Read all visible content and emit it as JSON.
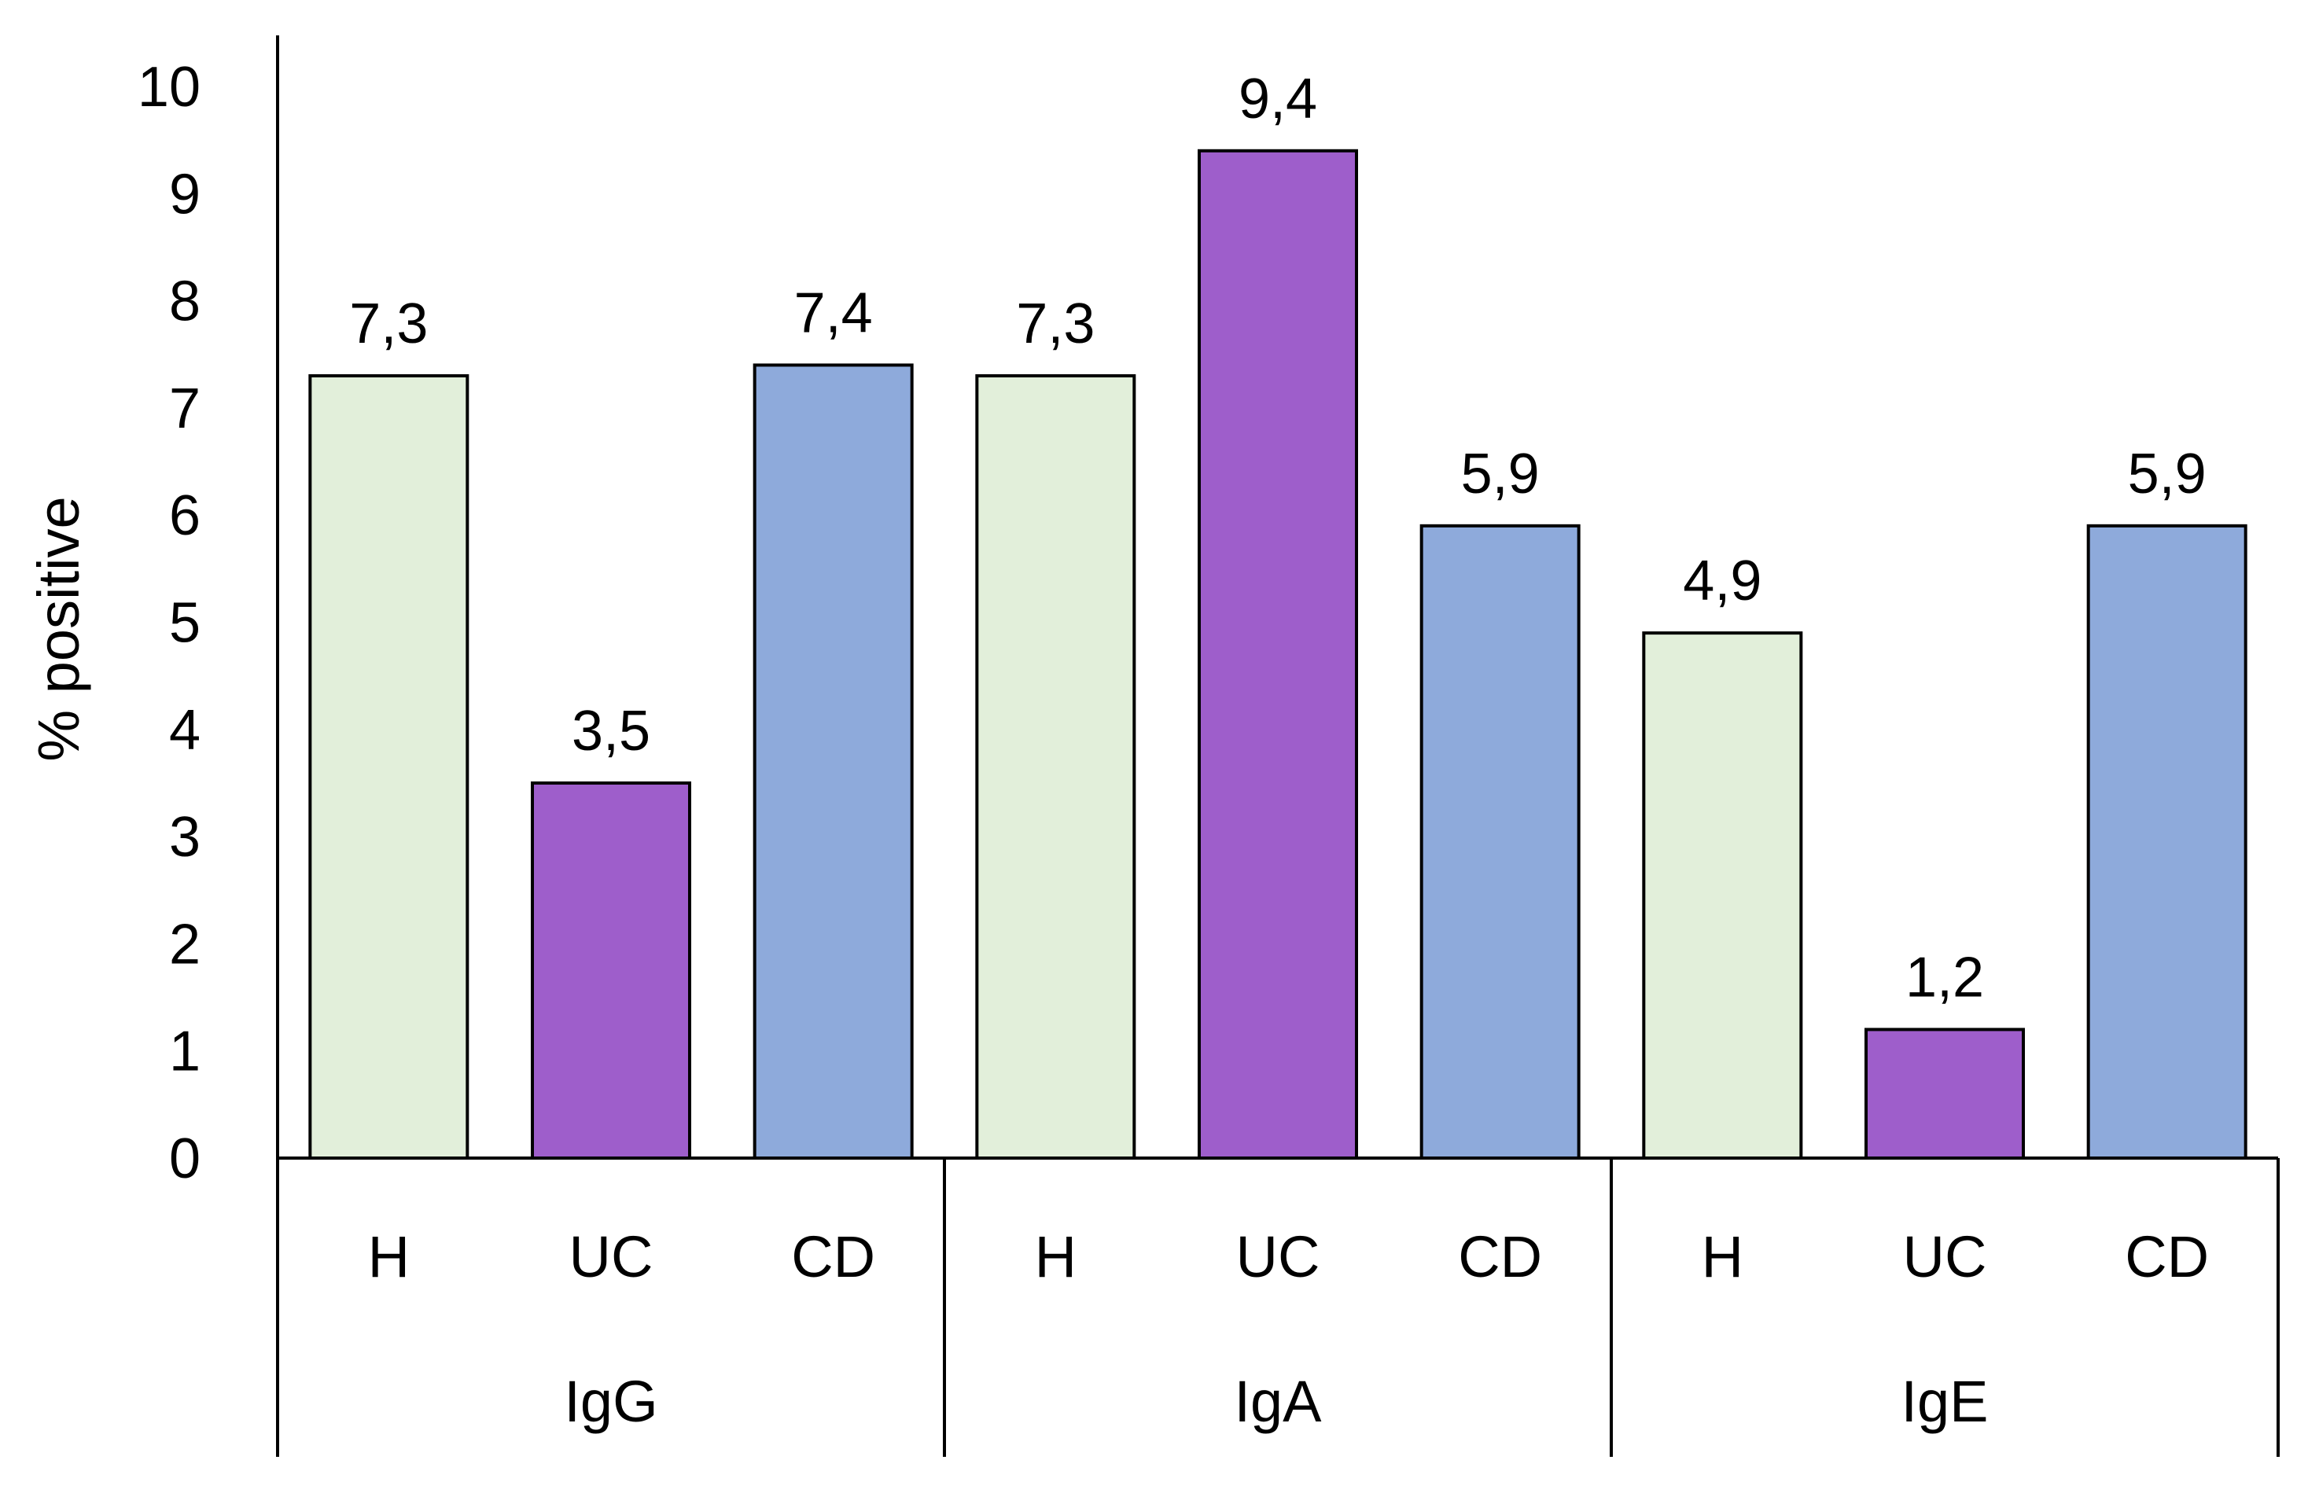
{
  "chart_data": {
    "type": "bar",
    "title": "",
    "xlabel": "",
    "ylabel": "% positive",
    "ylim": [
      0,
      10
    ],
    "yticks": [
      0,
      1,
      2,
      3,
      4,
      5,
      6,
      7,
      8,
      9,
      10
    ],
    "grid": false,
    "legend": "none",
    "groups": [
      {
        "name": "IgG",
        "bars": [
          {
            "category": "H",
            "value": 7.3,
            "label": "7,3",
            "color": "#e2efda"
          },
          {
            "category": "UC",
            "value": 3.5,
            "label": "3,5",
            "color": "#9e5ecb"
          },
          {
            "category": "CD",
            "value": 7.4,
            "label": "7,4",
            "color": "#8eaadb"
          }
        ]
      },
      {
        "name": "IgA",
        "bars": [
          {
            "category": "H",
            "value": 7.3,
            "label": "7,3",
            "color": "#e2efda"
          },
          {
            "category": "UC",
            "value": 9.4,
            "label": "9,4",
            "color": "#9e5ecb"
          },
          {
            "category": "CD",
            "value": 5.9,
            "label": "5,9",
            "color": "#8eaadb"
          }
        ]
      },
      {
        "name": "IgE",
        "bars": [
          {
            "category": "H",
            "value": 4.9,
            "label": "4,9",
            "color": "#e2efda"
          },
          {
            "category": "UC",
            "value": 1.2,
            "label": "1,2",
            "color": "#9e5ecb"
          },
          {
            "category": "CD",
            "value": 5.9,
            "label": "5,9",
            "color": "#8eaadb"
          }
        ]
      }
    ]
  }
}
